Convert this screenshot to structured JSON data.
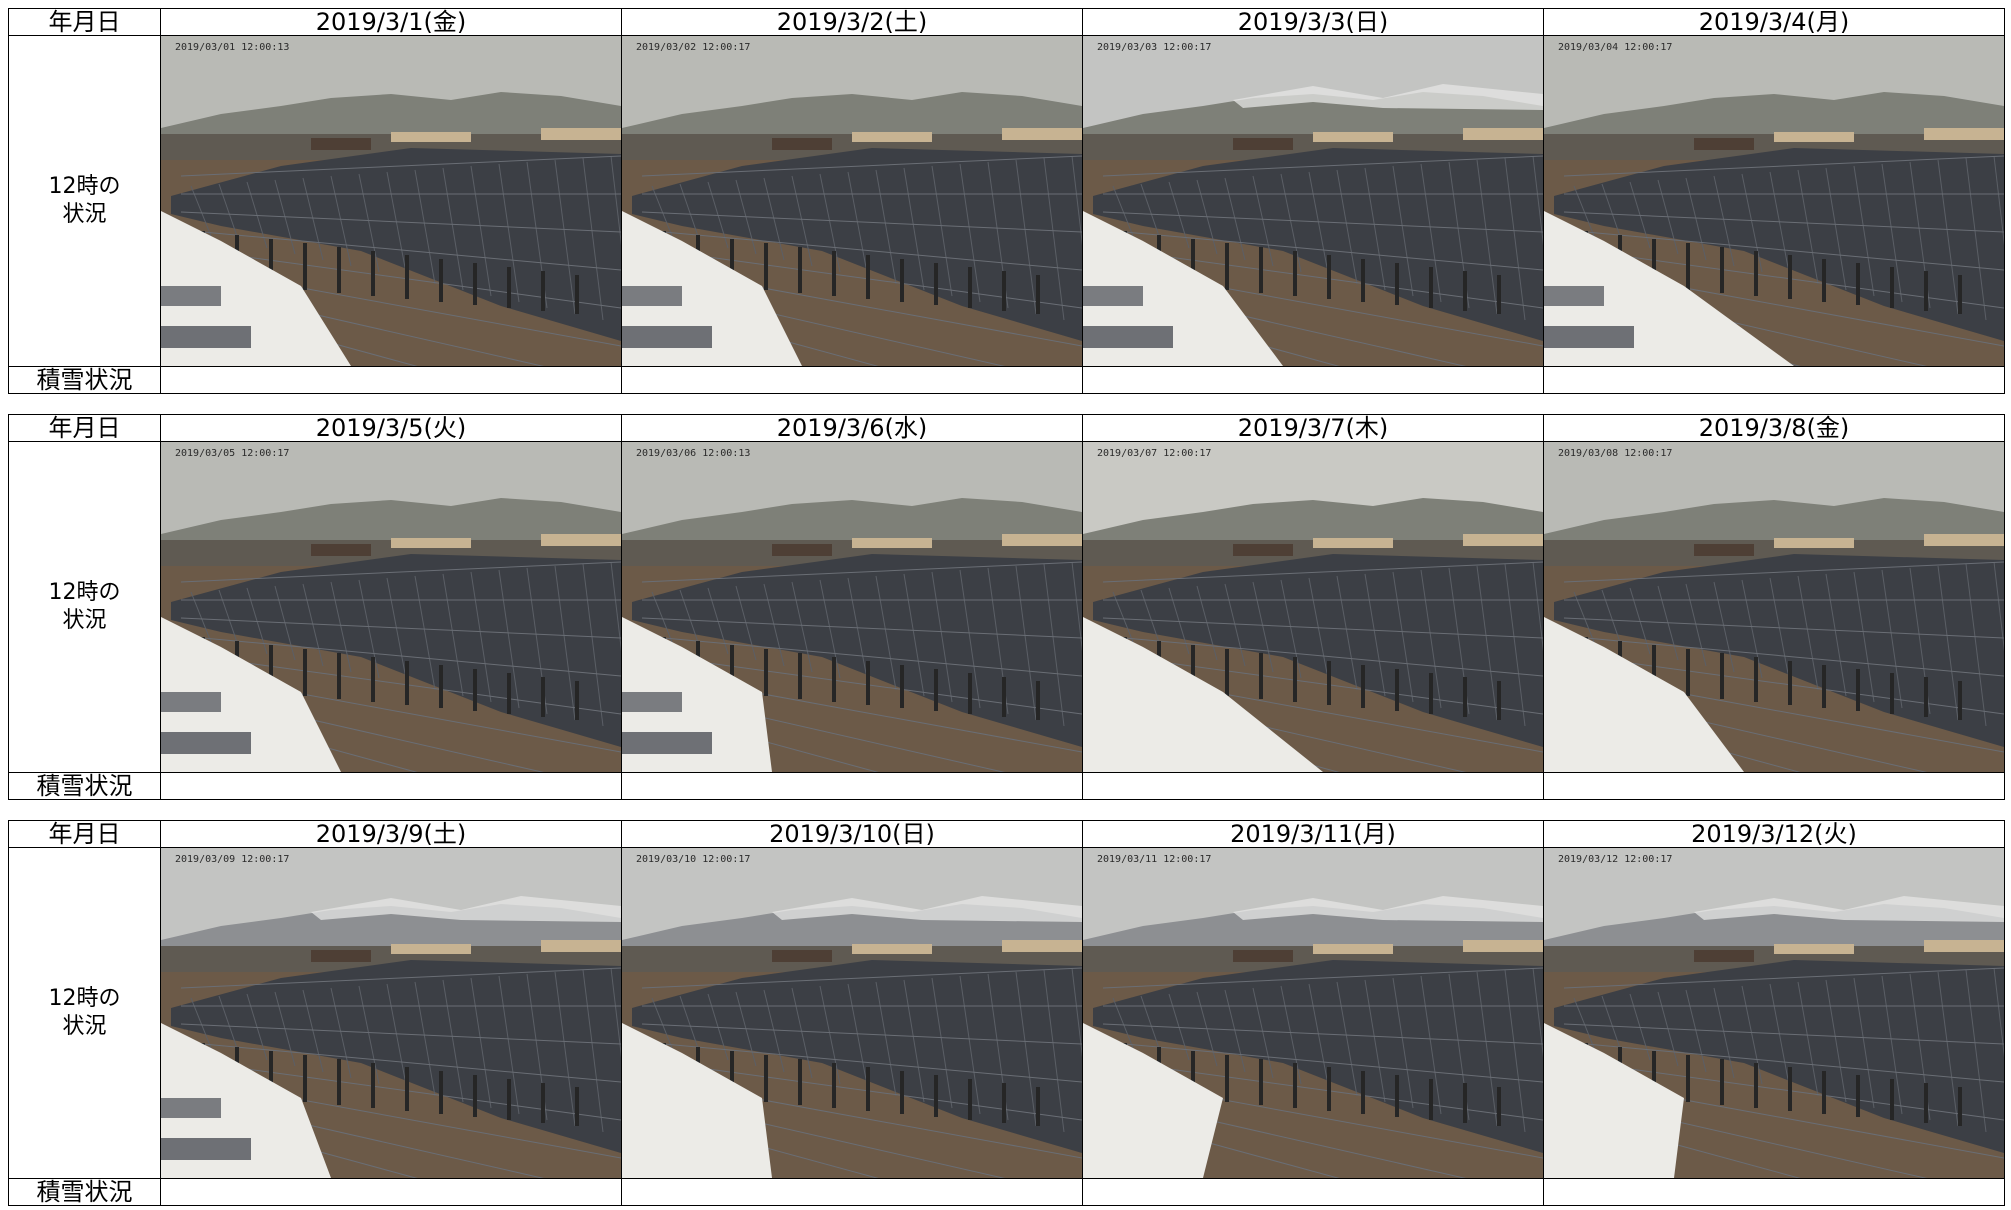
{
  "labels": {
    "date_header": "年月日",
    "noon_status_line1": "12時の",
    "noon_status_line2": "状況",
    "snow_status": "積雪状況"
  },
  "blocks": [
    {
      "days": [
        {
          "date": "2019/3/1(金)",
          "timestamp": "2019/03/01 12:00:13"
        },
        {
          "date": "2019/3/2(土)",
          "timestamp": "2019/03/02 12:00:17"
        },
        {
          "date": "2019/3/3(日)",
          "timestamp": "2019/03/03 12:00:17"
        },
        {
          "date": "2019/3/4(月)",
          "timestamp": "2019/03/04 12:00:17"
        }
      ]
    },
    {
      "days": [
        {
          "date": "2019/3/5(火)",
          "timestamp": "2019/03/05 12:00:17"
        },
        {
          "date": "2019/3/6(水)",
          "timestamp": "2019/03/06 12:00:13"
        },
        {
          "date": "2019/3/7(木)",
          "timestamp": "2019/03/07 12:00:17"
        },
        {
          "date": "2019/3/8(金)",
          "timestamp": "2019/03/08 12:00:17"
        }
      ]
    },
    {
      "days": [
        {
          "date": "2019/3/9(土)",
          "timestamp": "2019/03/09 12:00:17"
        },
        {
          "date": "2019/3/10(日)",
          "timestamp": "2019/03/10 12:00:17"
        },
        {
          "date": "2019/3/11(月)",
          "timestamp": "2019/03/11 12:00:17"
        },
        {
          "date": "2019/3/12(火)",
          "timestamp": "2019/03/12 12:00:17"
        }
      ]
    }
  ]
}
